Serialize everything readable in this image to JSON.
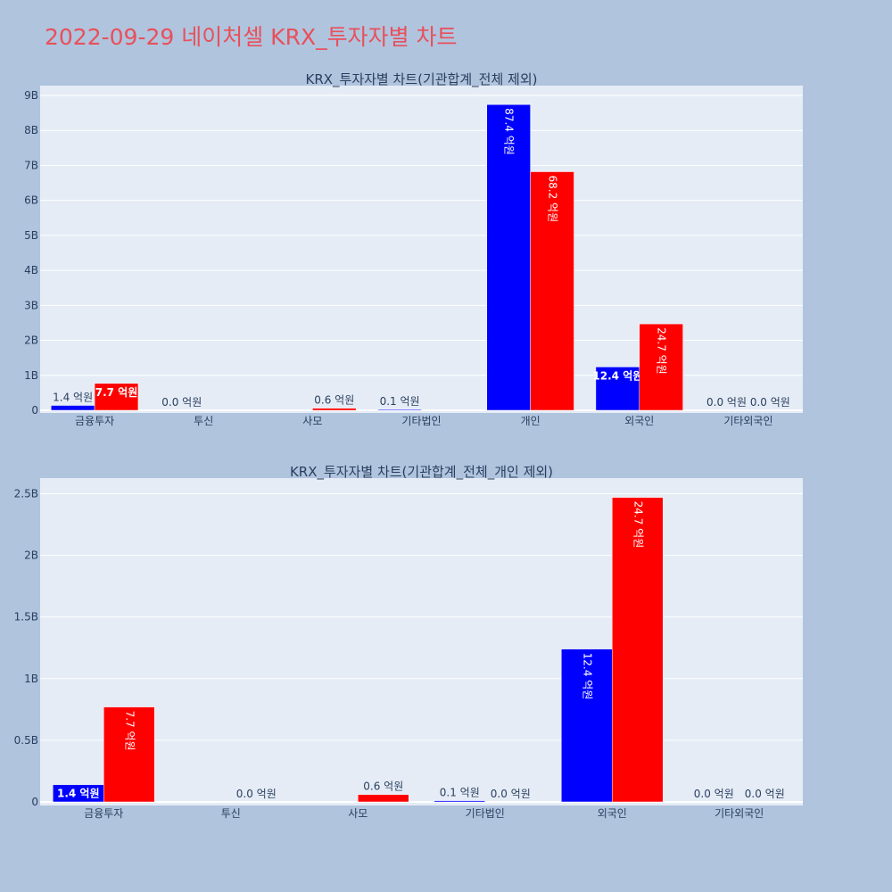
{
  "page": {
    "title": "2022-09-29 네이처셀 KRX_투자자별 차트"
  },
  "colors": {
    "background": "#b0c4de",
    "plot_bg": "#e5ecf6",
    "title": "#e8505b",
    "series_blue": "#0000ff",
    "series_red": "#ff0000",
    "text": "#2a3f5f"
  },
  "chart_data": [
    {
      "type": "bar",
      "title": "KRX_투자자별 차트(기관합계_전체 제외)",
      "categories": [
        "금융투자",
        "투신",
        "사모",
        "기타법인",
        "개인",
        "외국인",
        "기타외국인"
      ],
      "series": [
        {
          "color": "#0000ff",
          "values": [
            140000000,
            0,
            0,
            10000000,
            8740000000,
            1240000000,
            0
          ],
          "labels": [
            "1.4 억원",
            "0.0 억원",
            "",
            "0.1 억원",
            "87.4 억원",
            "12.4 억원",
            "0.0 억원"
          ]
        },
        {
          "color": "#ff0000",
          "values": [
            770000000,
            0,
            60000000,
            0,
            6820000000,
            2470000000,
            0
          ],
          "labels": [
            "7.7 억원",
            "",
            "0.6 억원",
            "",
            "68.2 억원",
            "24.7 억원",
            "0.0 억원"
          ]
        }
      ],
      "ylim": [
        0,
        9000000000
      ],
      "yticks": [
        0,
        1000000000,
        2000000000,
        3000000000,
        4000000000,
        5000000000,
        6000000000,
        7000000000,
        8000000000,
        9000000000
      ],
      "ytick_labels": [
        "0",
        "1B",
        "2B",
        "3B",
        "4B",
        "5B",
        "6B",
        "7B",
        "8B",
        "9B"
      ],
      "grid": true,
      "legend": "none"
    },
    {
      "type": "bar",
      "title": "KRX_투자자별 차트(기관합계_전체_개인 제외)",
      "categories": [
        "금융투자",
        "투신",
        "사모",
        "기타법인",
        "외국인",
        "기타외국인"
      ],
      "series": [
        {
          "color": "#0000ff",
          "values": [
            140000000,
            0,
            0,
            10000000,
            1240000000,
            0
          ],
          "labels": [
            "1.4 억원",
            "",
            "",
            "0.1 억원",
            "12.4 억원",
            "0.0 억원"
          ]
        },
        {
          "color": "#ff0000",
          "values": [
            770000000,
            0,
            60000000,
            0,
            2470000000,
            0
          ],
          "labels": [
            "7.7 억원",
            "0.0 억원",
            "0.6 억원",
            "0.0 억원",
            "24.7 억원",
            "0.0 억원"
          ]
        }
      ],
      "ylim": [
        0,
        2625000000
      ],
      "yticks": [
        0,
        500000000,
        1000000000,
        1500000000,
        2000000000,
        2500000000
      ],
      "ytick_labels": [
        "0",
        "0.5B",
        "1B",
        "1.5B",
        "2B",
        "2.5B"
      ],
      "grid": true,
      "legend": "none"
    }
  ]
}
